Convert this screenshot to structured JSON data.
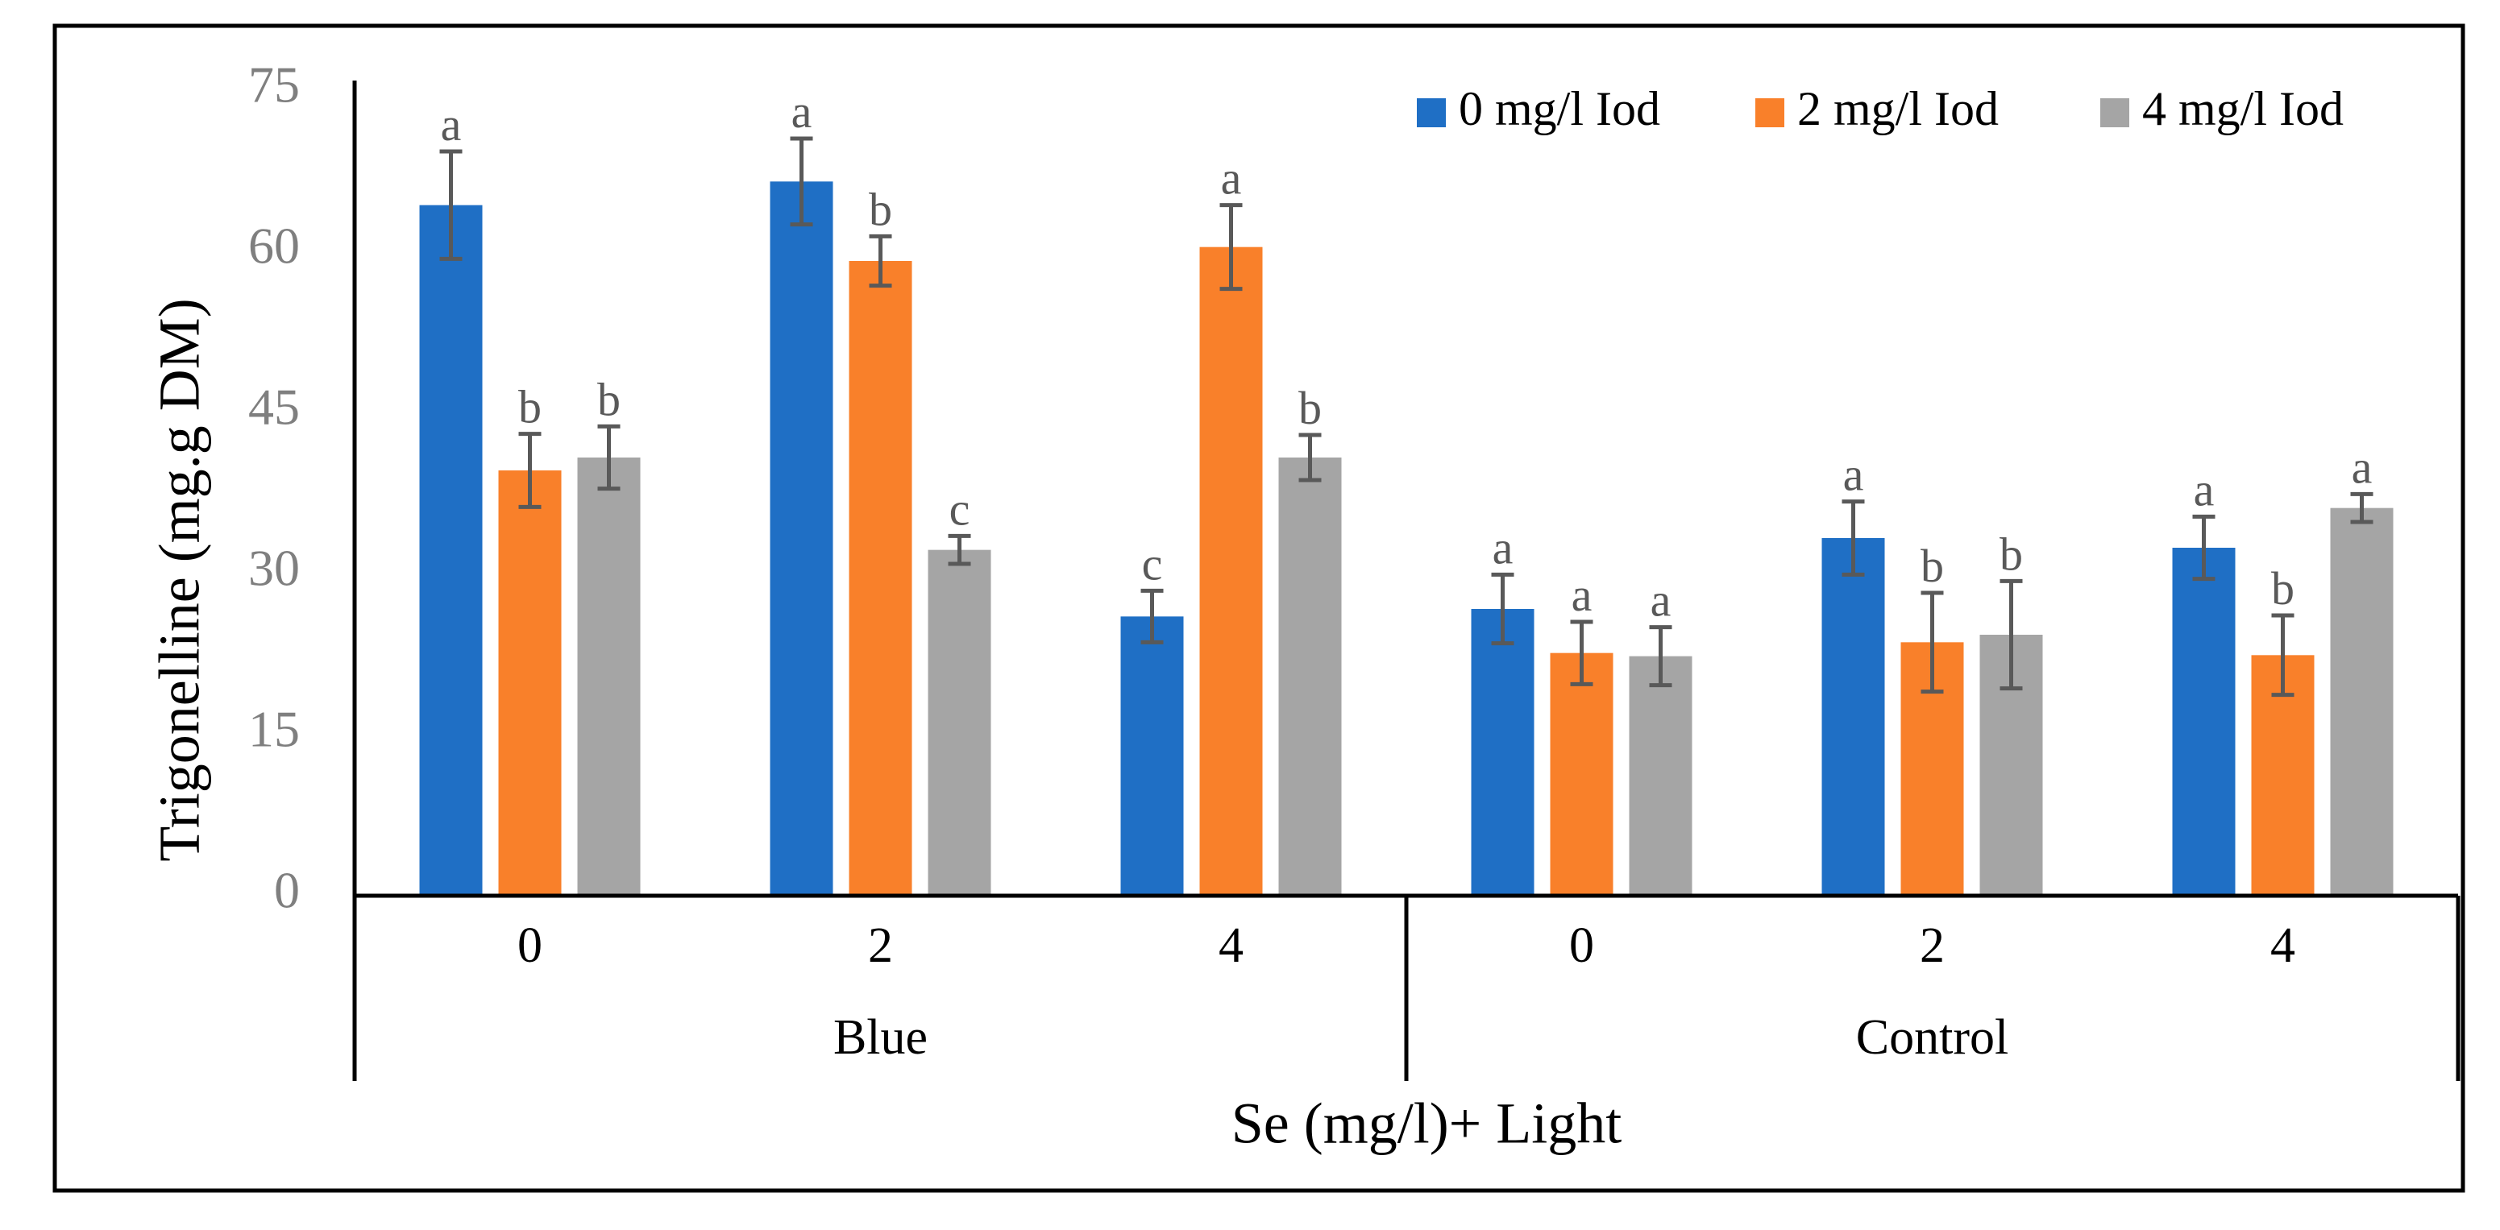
{
  "chart_data": {
    "type": "bar",
    "title": "",
    "xlabel": "Se (mg/l)+ Light",
    "ylabel": "Trigonelline  (mg.g DM)",
    "ylim": [
      0,
      75
    ],
    "yticks": [
      "0",
      "15",
      "30",
      "45",
      "60",
      "75"
    ],
    "categories": [
      "0",
      "2",
      "4",
      "0",
      "2",
      "4"
    ],
    "groups": [
      {
        "label": "Blue",
        "span": [
          0,
          2
        ]
      },
      {
        "label": "Control",
        "span": [
          3,
          5
        ]
      }
    ],
    "legend_position": "top-right",
    "grid": false,
    "series": [
      {
        "name": "0 mg/l Iod",
        "color": "#1f6fc5",
        "values": [
          64.3,
          66.5,
          26.0,
          26.7,
          33.3,
          32.4
        ],
        "errors": [
          5.0,
          4.0,
          2.4,
          3.2,
          3.4,
          2.9
        ],
        "labels": [
          "a",
          "a",
          "c",
          "a",
          "a",
          "a"
        ]
      },
      {
        "name": "2 mg/l Iod",
        "color": "#f9802a",
        "values": [
          39.6,
          59.1,
          60.4,
          22.6,
          23.6,
          22.4
        ],
        "errors": [
          3.4,
          2.3,
          3.9,
          2.9,
          4.6,
          3.7
        ],
        "labels": [
          "b",
          "b",
          "a",
          "a",
          "b",
          "b"
        ]
      },
      {
        "name": "4 mg/l Iod",
        "color": "#a5a5a5",
        "values": [
          40.8,
          32.2,
          40.8,
          22.3,
          24.3,
          36.1
        ],
        "errors": [
          2.9,
          1.3,
          2.1,
          2.7,
          5.0,
          1.3
        ],
        "labels": [
          "b",
          "c",
          "b",
          "a",
          "b",
          "a"
        ]
      }
    ]
  }
}
